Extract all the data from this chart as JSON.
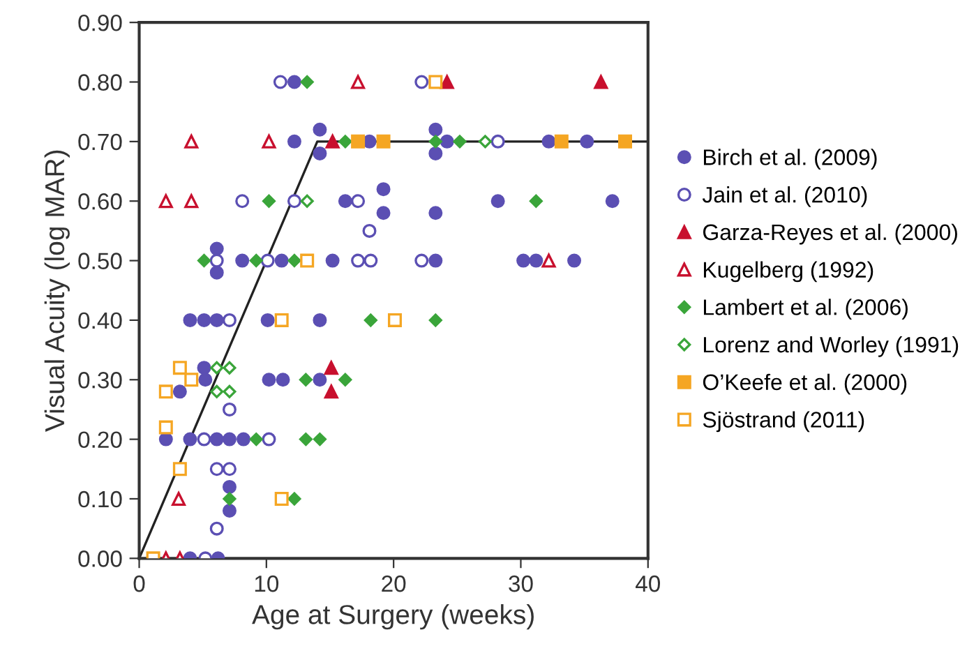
{
  "chart_data": {
    "type": "scatter",
    "xlabel": "Age at Surgery (weeks)",
    "ylabel": "Visual Acuity (log MAR)",
    "xlim": [
      0,
      40
    ],
    "ylim": [
      0,
      0.9
    ],
    "xticks": [
      0,
      10,
      20,
      30,
      40
    ],
    "yticks": [
      {
        "value": 0,
        "label": "0.00"
      },
      {
        "value": 0.1,
        "label": "0.10"
      },
      {
        "value": 0.2,
        "label": "0.20"
      },
      {
        "value": 0.3,
        "label": "0.30"
      },
      {
        "value": 0.4,
        "label": "0.40"
      },
      {
        "value": 0.5,
        "label": "0.50"
      },
      {
        "value": 0.6,
        "label": "0.60"
      },
      {
        "value": 0.7,
        "label": "0.70"
      },
      {
        "value": 0.8,
        "label": "0.80"
      },
      {
        "value": 0.9,
        "label": "0.90"
      }
    ],
    "grid": false,
    "legend": "right",
    "series": [
      {
        "name": "Birch et al. (2009)",
        "color": "#5b4fb3",
        "marker": "circle",
        "x": [
          12.2,
          12.2,
          14.2,
          14.2,
          18.1,
          23.3,
          23.3,
          24.2,
          32.2,
          35.2,
          16.2,
          19.2,
          19.2,
          28.2,
          37.2,
          23.3,
          6.1,
          6.1,
          8.1,
          11.2,
          15.2,
          23.3,
          30.2,
          31.2,
          34.2,
          4.0,
          5.1,
          6.1,
          10.1,
          14.2,
          5.1,
          5.2,
          3.2,
          10.2,
          11.3,
          14.2,
          2.1,
          4.0,
          6.1,
          7.1,
          8.2,
          7.1,
          7.1,
          4.0,
          6.2
        ],
        "values": [
          0.8,
          0.7,
          0.72,
          0.68,
          0.7,
          0.72,
          0.68,
          0.7,
          0.7,
          0.7,
          0.6,
          0.62,
          0.58,
          0.6,
          0.6,
          0.58,
          0.52,
          0.48,
          0.5,
          0.5,
          0.5,
          0.5,
          0.5,
          0.5,
          0.5,
          0.4,
          0.4,
          0.4,
          0.4,
          0.4,
          0.32,
          0.3,
          0.28,
          0.3,
          0.3,
          0.3,
          0.2,
          0.2,
          0.2,
          0.2,
          0.2,
          0.12,
          0.08,
          0,
          0
        ]
      },
      {
        "name": "Jain et al. (2010)",
        "color": "#5b4fb3",
        "marker": "circle",
        "x": [
          11.1,
          22.2,
          28.2,
          8.1,
          12.2,
          17.2,
          18.1,
          6.1,
          10.1,
          17.2,
          18.2,
          22.2,
          7.1,
          7.1,
          5.1,
          10.2,
          6.1,
          7.1,
          6.1,
          5.2
        ],
        "values": [
          0.8,
          0.8,
          0.7,
          0.6,
          0.6,
          0.6,
          0.55,
          0.5,
          0.5,
          0.5,
          0.5,
          0.5,
          0.4,
          0.25,
          0.2,
          0.2,
          0.15,
          0.15,
          0.05,
          0
        ]
      },
      {
        "name": "Garza-Reyes et al. (2000)",
        "color": "#c8102e",
        "marker": "triangle",
        "x": [
          24.2,
          36.3,
          15.2,
          15.1,
          15.1
        ],
        "values": [
          0.8,
          0.8,
          0.7,
          0.32,
          0.28
        ]
      },
      {
        "name": "Kugelberg (1992)",
        "color": "#c8102e",
        "marker": "triangle",
        "x": [
          17.2,
          4.1,
          10.2,
          2.1,
          4.1,
          32.2,
          3.1,
          2.1,
          3.2
        ],
        "values": [
          0.8,
          0.7,
          0.7,
          0.6,
          0.6,
          0.5,
          0.1,
          0,
          0
        ]
      },
      {
        "name": "Lambert et al. (2006)",
        "color": "#3aa53a",
        "marker": "diamond",
        "x": [
          13.2,
          16.2,
          23.3,
          25.2,
          10.2,
          31.2,
          5.1,
          9.2,
          12.2,
          18.2,
          23.3,
          13.1,
          16.2,
          9.2,
          13.1,
          14.2,
          7.1,
          12.2
        ],
        "values": [
          0.8,
          0.7,
          0.7,
          0.7,
          0.6,
          0.6,
          0.5,
          0.5,
          0.5,
          0.4,
          0.4,
          0.3,
          0.3,
          0.2,
          0.2,
          0.2,
          0.1,
          0.1
        ]
      },
      {
        "name": "Lorenz and Worley (1991)",
        "color": "#3aa53a",
        "marker": "diamond",
        "x": [
          27.2,
          13.2,
          6.1,
          7.1,
          6.1,
          7.1
        ],
        "values": [
          0.7,
          0.6,
          0.32,
          0.32,
          0.28,
          0.28
        ]
      },
      {
        "name": "O’Keefe et al. (2000)",
        "color": "#f5a623",
        "marker": "square",
        "x": [
          17.2,
          19.2,
          33.2,
          38.2
        ],
        "values": [
          0.7,
          0.7,
          0.7,
          0.7
        ]
      },
      {
        "name": "Sjöstrand (2011)",
        "color": "#f5a623",
        "marker": "square",
        "x": [
          23.3,
          13.2,
          11.2,
          20.1,
          3.2,
          4.1,
          2.1,
          2.1,
          3.2,
          11.2,
          1.1
        ],
        "values": [
          0.8,
          0.5,
          0.4,
          0.4,
          0.32,
          0.3,
          0.28,
          0.22,
          0.15,
          0.1,
          0
        ]
      },
      {
        "type": "line",
        "color": "#222222",
        "marker": "none",
        "x": [
          0,
          14,
          40
        ],
        "values": [
          0,
          0.7,
          0.7
        ]
      }
    ]
  }
}
